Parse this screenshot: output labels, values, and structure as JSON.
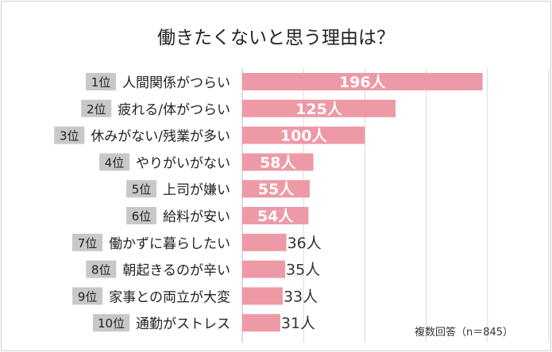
{
  "chart_data": {
    "type": "bar",
    "orientation": "horizontal",
    "title": "働きたくないと思う理由は？",
    "note": "複数回答（n＝845）",
    "unit": "人",
    "xlim": [
      0,
      250
    ],
    "grid_step": 50,
    "grid": true,
    "ranks": [
      "1位",
      "2位",
      "3位",
      "4位",
      "5位",
      "6位",
      "7位",
      "8位",
      "9位",
      "10位"
    ],
    "categories": [
      "人間関係がつらい",
      "疲れる/体がつらい",
      "休みがない/残業が多い",
      "やりがいがない",
      "上司が嫌い",
      "給料が安い",
      "働かずに暮らしたい",
      "朝起きるのが辛い",
      "家事との両立が大変",
      "通勤がストレス"
    ],
    "values": [
      196,
      125,
      100,
      58,
      55,
      54,
      36,
      35,
      33,
      31
    ],
    "value_labels": [
      "196人",
      "125人",
      "100人",
      "58人",
      "55人",
      "54人",
      "36人",
      "35人",
      "33人",
      "31人"
    ],
    "colors": {
      "bar": "#ee99a6",
      "badge": "#c8c8c8",
      "grid": "#d9d9d9",
      "inside_label": "#ffffff",
      "outside_label": "#333333"
    }
  }
}
